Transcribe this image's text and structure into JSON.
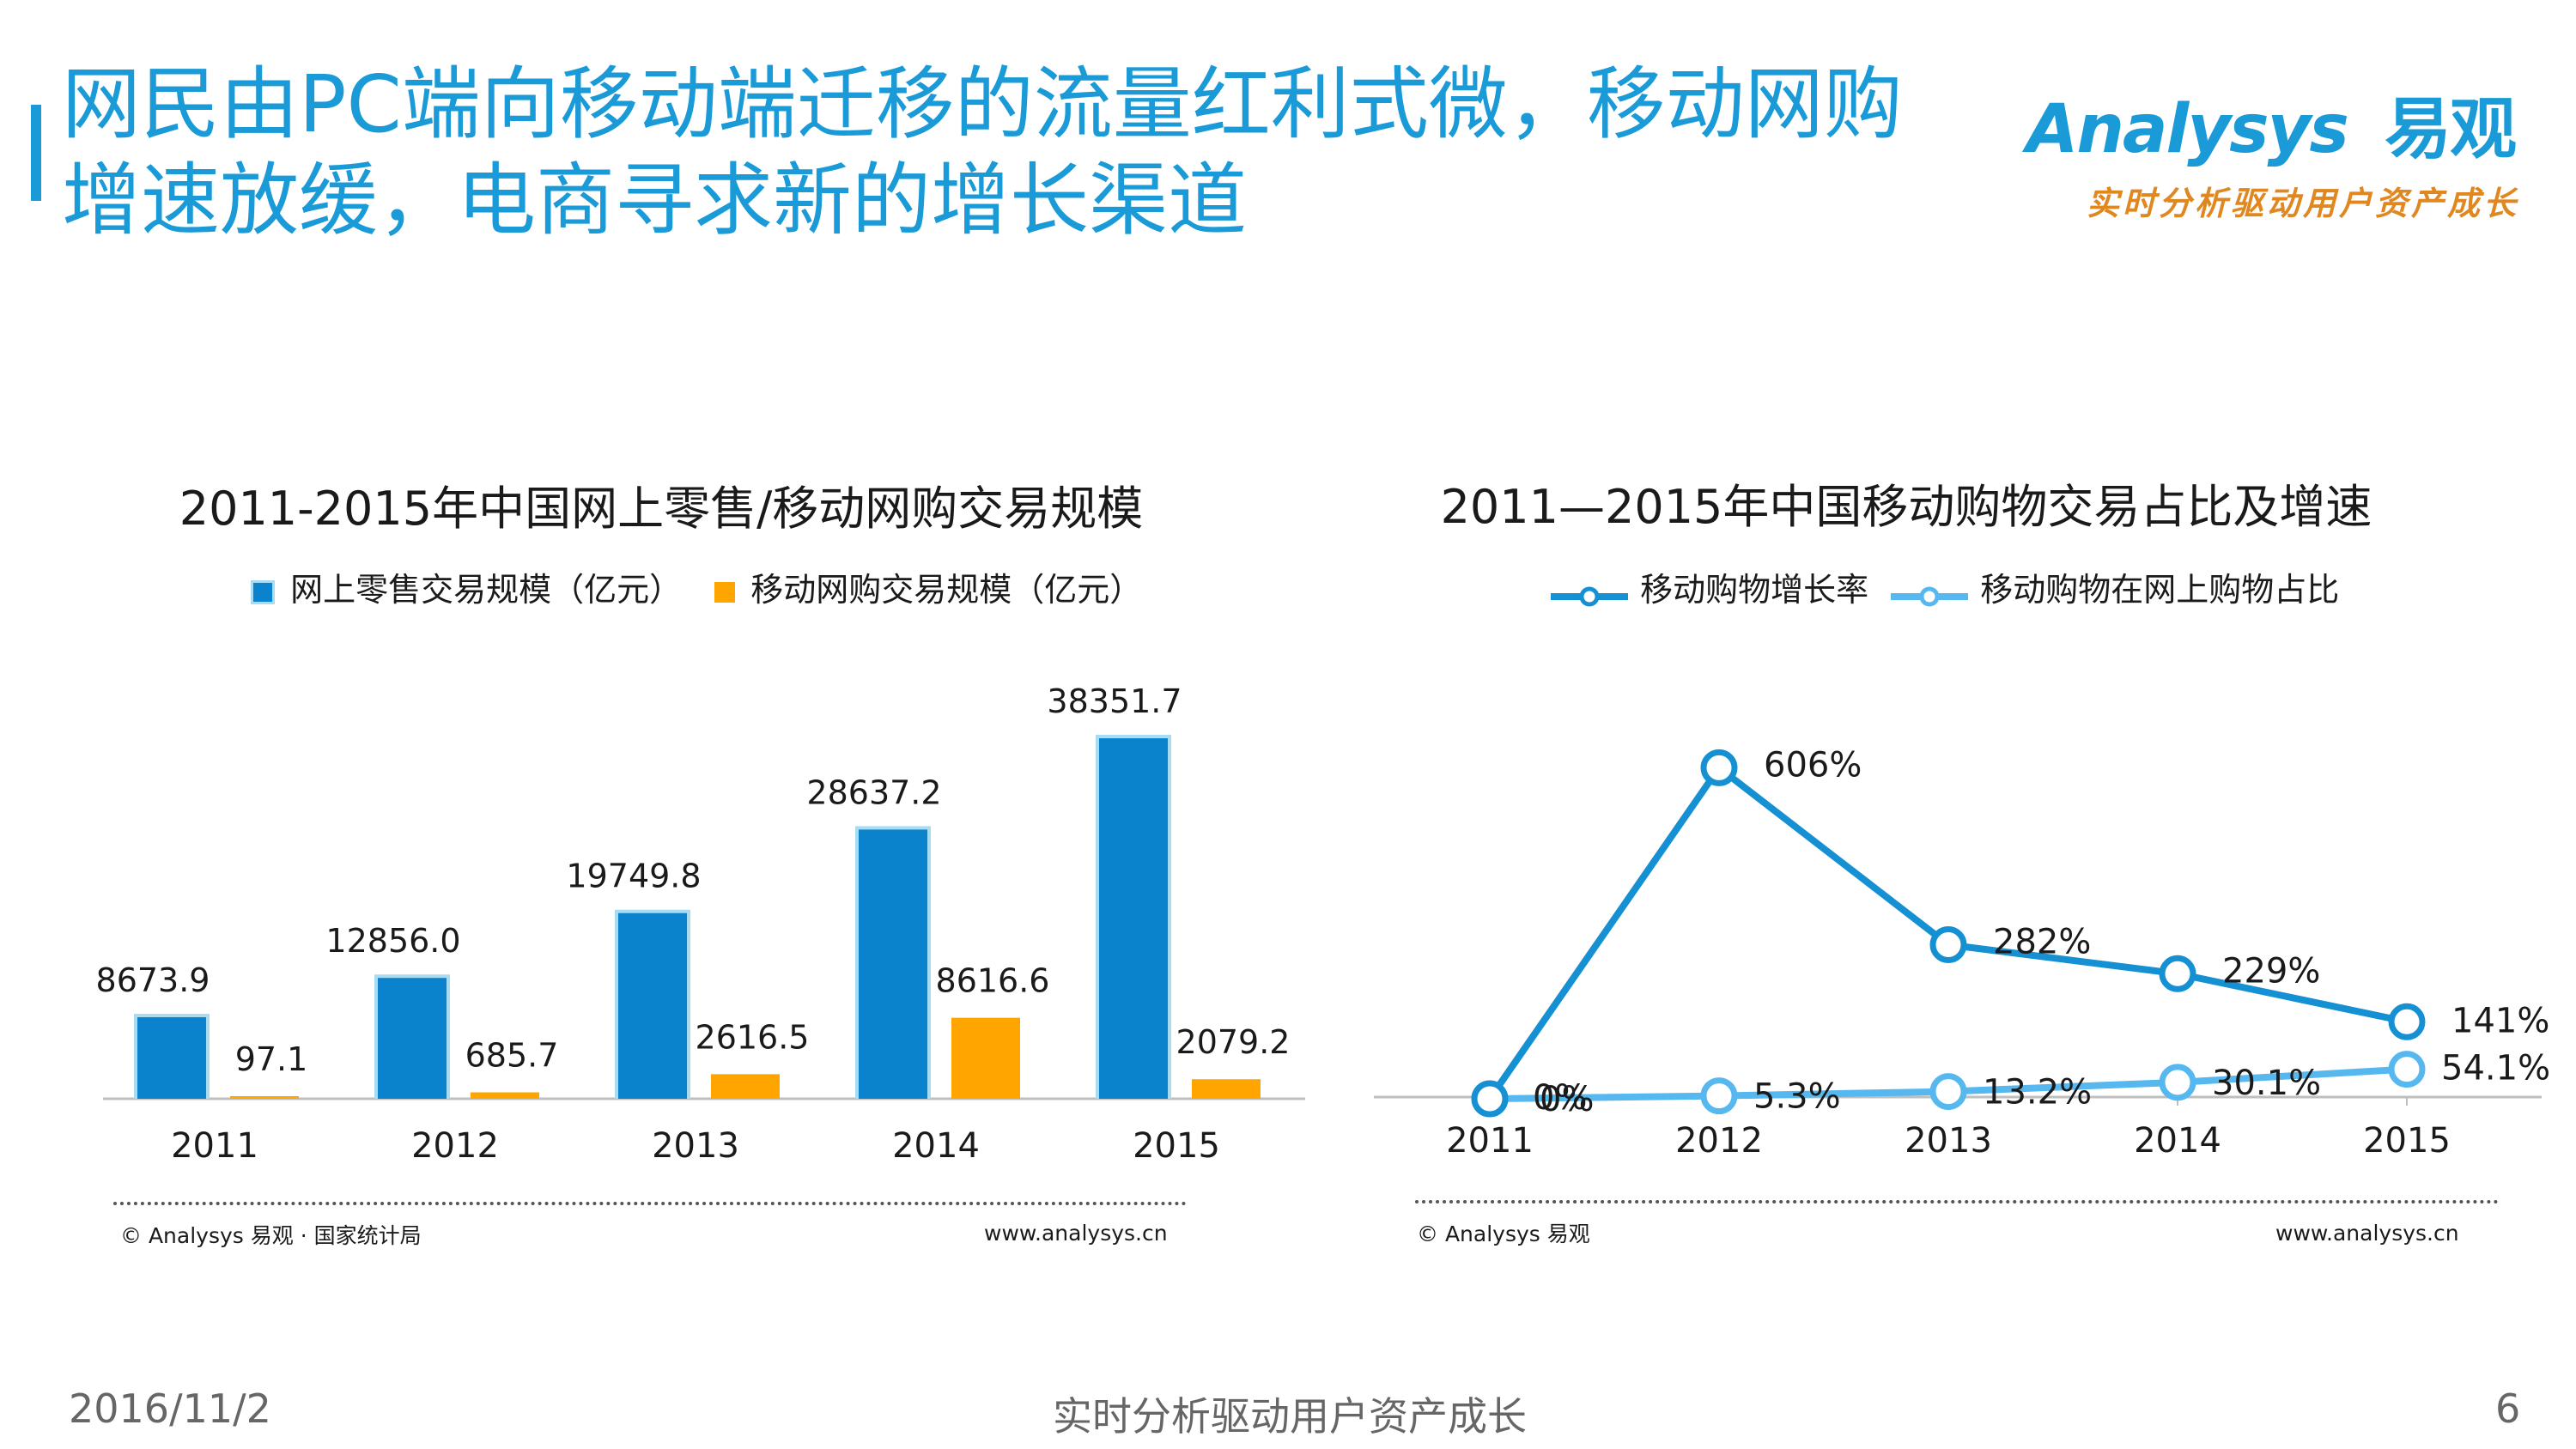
{
  "slide": {
    "title": "网民由PC端向移动端迁移的流量红利式微，移动网购增速放缓，电商寻求新的增长渠道",
    "logo_word": "Analysys",
    "logo_cn": "易观",
    "logo_tagline": "实时分析驱动用户资产成长",
    "footer_date": "2016/11/2",
    "footer_slogan": "实时分析驱动用户资产成长",
    "footer_page": "6"
  },
  "colors": {
    "brand_blue": "#1a9ad6",
    "bar_blue": "#0a82cc",
    "bar_blue_outline": "#a8dcf2",
    "bar_orange": "#ffa500",
    "line_dark": "#1590d2",
    "line_light": "#56b8ee",
    "footer_orange": "#e0871f"
  },
  "left_chart": {
    "title": "2011-2015年中国网上零售/移动网购交易规模",
    "legend": [
      "网上零售交易规模（亿元）",
      "移动网购交易规模（亿元）"
    ],
    "source": "© Analysys 易观 · 国家统计局",
    "url": "www.analysys.cn"
  },
  "right_chart": {
    "title": "2011—2015年中国移动购物交易占比及增速",
    "legend": [
      "移动购物增长率",
      "移动购物在网上购物占比"
    ],
    "source": "© Analysys 易观",
    "url": "www.analysys.cn"
  },
  "chart_data": [
    {
      "type": "bar",
      "title": "2011-2015年中国网上零售/移动网购交易规模",
      "categories": [
        "2011",
        "2012",
        "2013",
        "2014",
        "2015"
      ],
      "series": [
        {
          "name": "网上零售交易规模（亿元）",
          "values": [
            8673.9,
            12856.0,
            19749.8,
            28637.2,
            38351.7
          ],
          "labels": [
            "8673.9",
            "12856.0",
            "19749.8",
            "28637.2",
            "38351.7"
          ],
          "color": "#0a82cc"
        },
        {
          "name": "移动网购交易规模（亿元）",
          "values": [
            97.1,
            685.7,
            2616.5,
            8616.6,
            2079.2
          ],
          "labels": [
            "97.1",
            "685.7",
            "2616.5",
            "8616.6",
            "2079.2"
          ],
          "color": "#ffa500"
        }
      ],
      "ylim": [
        0,
        40000
      ],
      "legend_position": "top"
    },
    {
      "type": "line",
      "title": "2011—2015年中国移动购物交易占比及增速",
      "categories": [
        "2011",
        "2012",
        "2013",
        "2014",
        "2015"
      ],
      "series": [
        {
          "name": "移动购物增长率",
          "values": [
            0,
            606,
            282,
            229,
            141
          ],
          "labels": [
            "0%",
            "606%",
            "282%",
            "229%",
            "141%"
          ],
          "color": "#1590d2"
        },
        {
          "name": "移动购物在网上购物占比",
          "values": [
            0,
            5.3,
            13.2,
            30.1,
            54.1
          ],
          "labels": [
            "0%",
            "5.3%",
            "13.2%",
            "30.1%",
            "54.1%"
          ],
          "color": "#56b8ee"
        }
      ],
      "ylim": [
        0,
        660
      ],
      "legend_position": "top"
    }
  ]
}
